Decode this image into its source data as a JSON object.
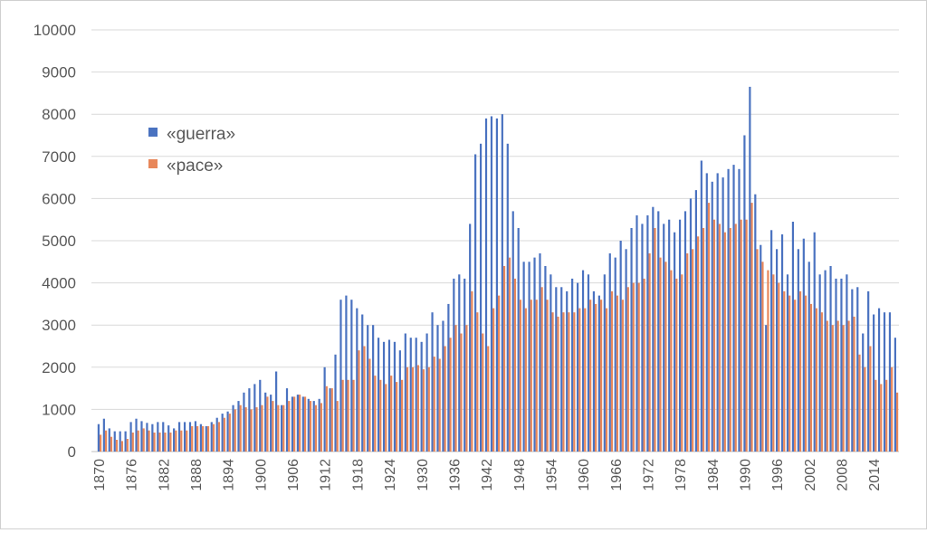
{
  "chart_data": {
    "type": "bar",
    "title": "",
    "xlabel": "",
    "ylabel": "",
    "ylim": [
      0,
      10000
    ],
    "yticks": [
      "0",
      "1000",
      "2000",
      "3000",
      "4000",
      "5000",
      "6000",
      "7000",
      "8000",
      "9000",
      "10000"
    ],
    "x_start": 1870,
    "x_end": 2018,
    "xtick_step": 6,
    "grid": true,
    "legend_position": "top-left",
    "series": [
      {
        "name": "«guerra»",
        "color": "#4a72c0",
        "values": [
          650,
          780,
          550,
          480,
          480,
          480,
          700,
          780,
          720,
          680,
          650,
          700,
          700,
          620,
          550,
          700,
          700,
          700,
          720,
          650,
          600,
          700,
          800,
          900,
          950,
          1100,
          1200,
          1400,
          1500,
          1600,
          1700,
          1400,
          1350,
          1900,
          1100,
          1500,
          1300,
          1350,
          1300,
          1250,
          1200,
          1250,
          2000,
          1500,
          2300,
          3600,
          3700,
          3600,
          3400,
          3250,
          3000,
          3000,
          2700,
          2600,
          2650,
          2600,
          2400,
          2800,
          2700,
          2700,
          2600,
          2800,
          3300,
          3000,
          3100,
          3500,
          4100,
          4200,
          4100,
          5400,
          7050,
          7300,
          7900,
          7950,
          7900,
          8000,
          7300,
          5700,
          5300,
          4500,
          4500,
          4600,
          4700,
          4400,
          4200,
          3900,
          3900,
          3800,
          4100,
          4000,
          4300,
          4200,
          3800,
          3700,
          4200,
          4700,
          4600,
          5000,
          4800,
          5300,
          5600,
          5400,
          5600,
          5800,
          5700,
          5400,
          5500,
          5200,
          5500,
          5700,
          6000,
          6200,
          6900,
          6600,
          6400,
          6600,
          6500,
          6700,
          6800,
          6700,
          7500,
          8650,
          6100,
          4900,
          3000,
          5250,
          4800,
          5150,
          4200,
          5450,
          4800,
          5050,
          4500,
          5200,
          4200,
          4300,
          4400,
          4100,
          4100,
          4200,
          3850,
          3900,
          2800,
          3800,
          3250,
          3400,
          3300,
          3300,
          2700
        ]
      },
      {
        "name": "«pace»",
        "color": "#e8875a",
        "values": [
          400,
          500,
          350,
          280,
          250,
          300,
          450,
          500,
          550,
          500,
          450,
          450,
          450,
          450,
          500,
          500,
          500,
          600,
          600,
          600,
          600,
          650,
          700,
          800,
          900,
          1000,
          1100,
          1050,
          1000,
          1050,
          1100,
          1300,
          1200,
          1100,
          1100,
          1200,
          1300,
          1350,
          1300,
          1200,
          1100,
          1150,
          1550,
          1500,
          1200,
          1700,
          1700,
          1700,
          2400,
          2500,
          2200,
          1800,
          1700,
          1600,
          1800,
          1650,
          1700,
          2000,
          2000,
          2050,
          1950,
          2000,
          2250,
          2200,
          2500,
          2700,
          3000,
          2800,
          3000,
          3800,
          3300,
          2800,
          2500,
          3400,
          3700,
          4400,
          4600,
          4100,
          3600,
          3400,
          3600,
          3600,
          3900,
          3600,
          3300,
          3200,
          3300,
          3300,
          3300,
          3400,
          3400,
          3600,
          3500,
          3600,
          3400,
          3800,
          3700,
          3600,
          3900,
          4000,
          4000,
          4100,
          4700,
          5300,
          4600,
          4500,
          4300,
          4100,
          4200,
          4700,
          4800,
          5100,
          5300,
          5900,
          5500,
          5400,
          5200,
          5300,
          5400,
          5500,
          5500,
          5900,
          4800,
          4500,
          4300,
          4200,
          4000,
          3800,
          3700,
          3600,
          3800,
          3700,
          3500,
          3400,
          3300,
          3100,
          3000,
          3100,
          3000,
          3100,
          3200,
          2300,
          2000,
          2500,
          1700,
          1600,
          1700,
          2000,
          1400
        ]
      }
    ]
  }
}
